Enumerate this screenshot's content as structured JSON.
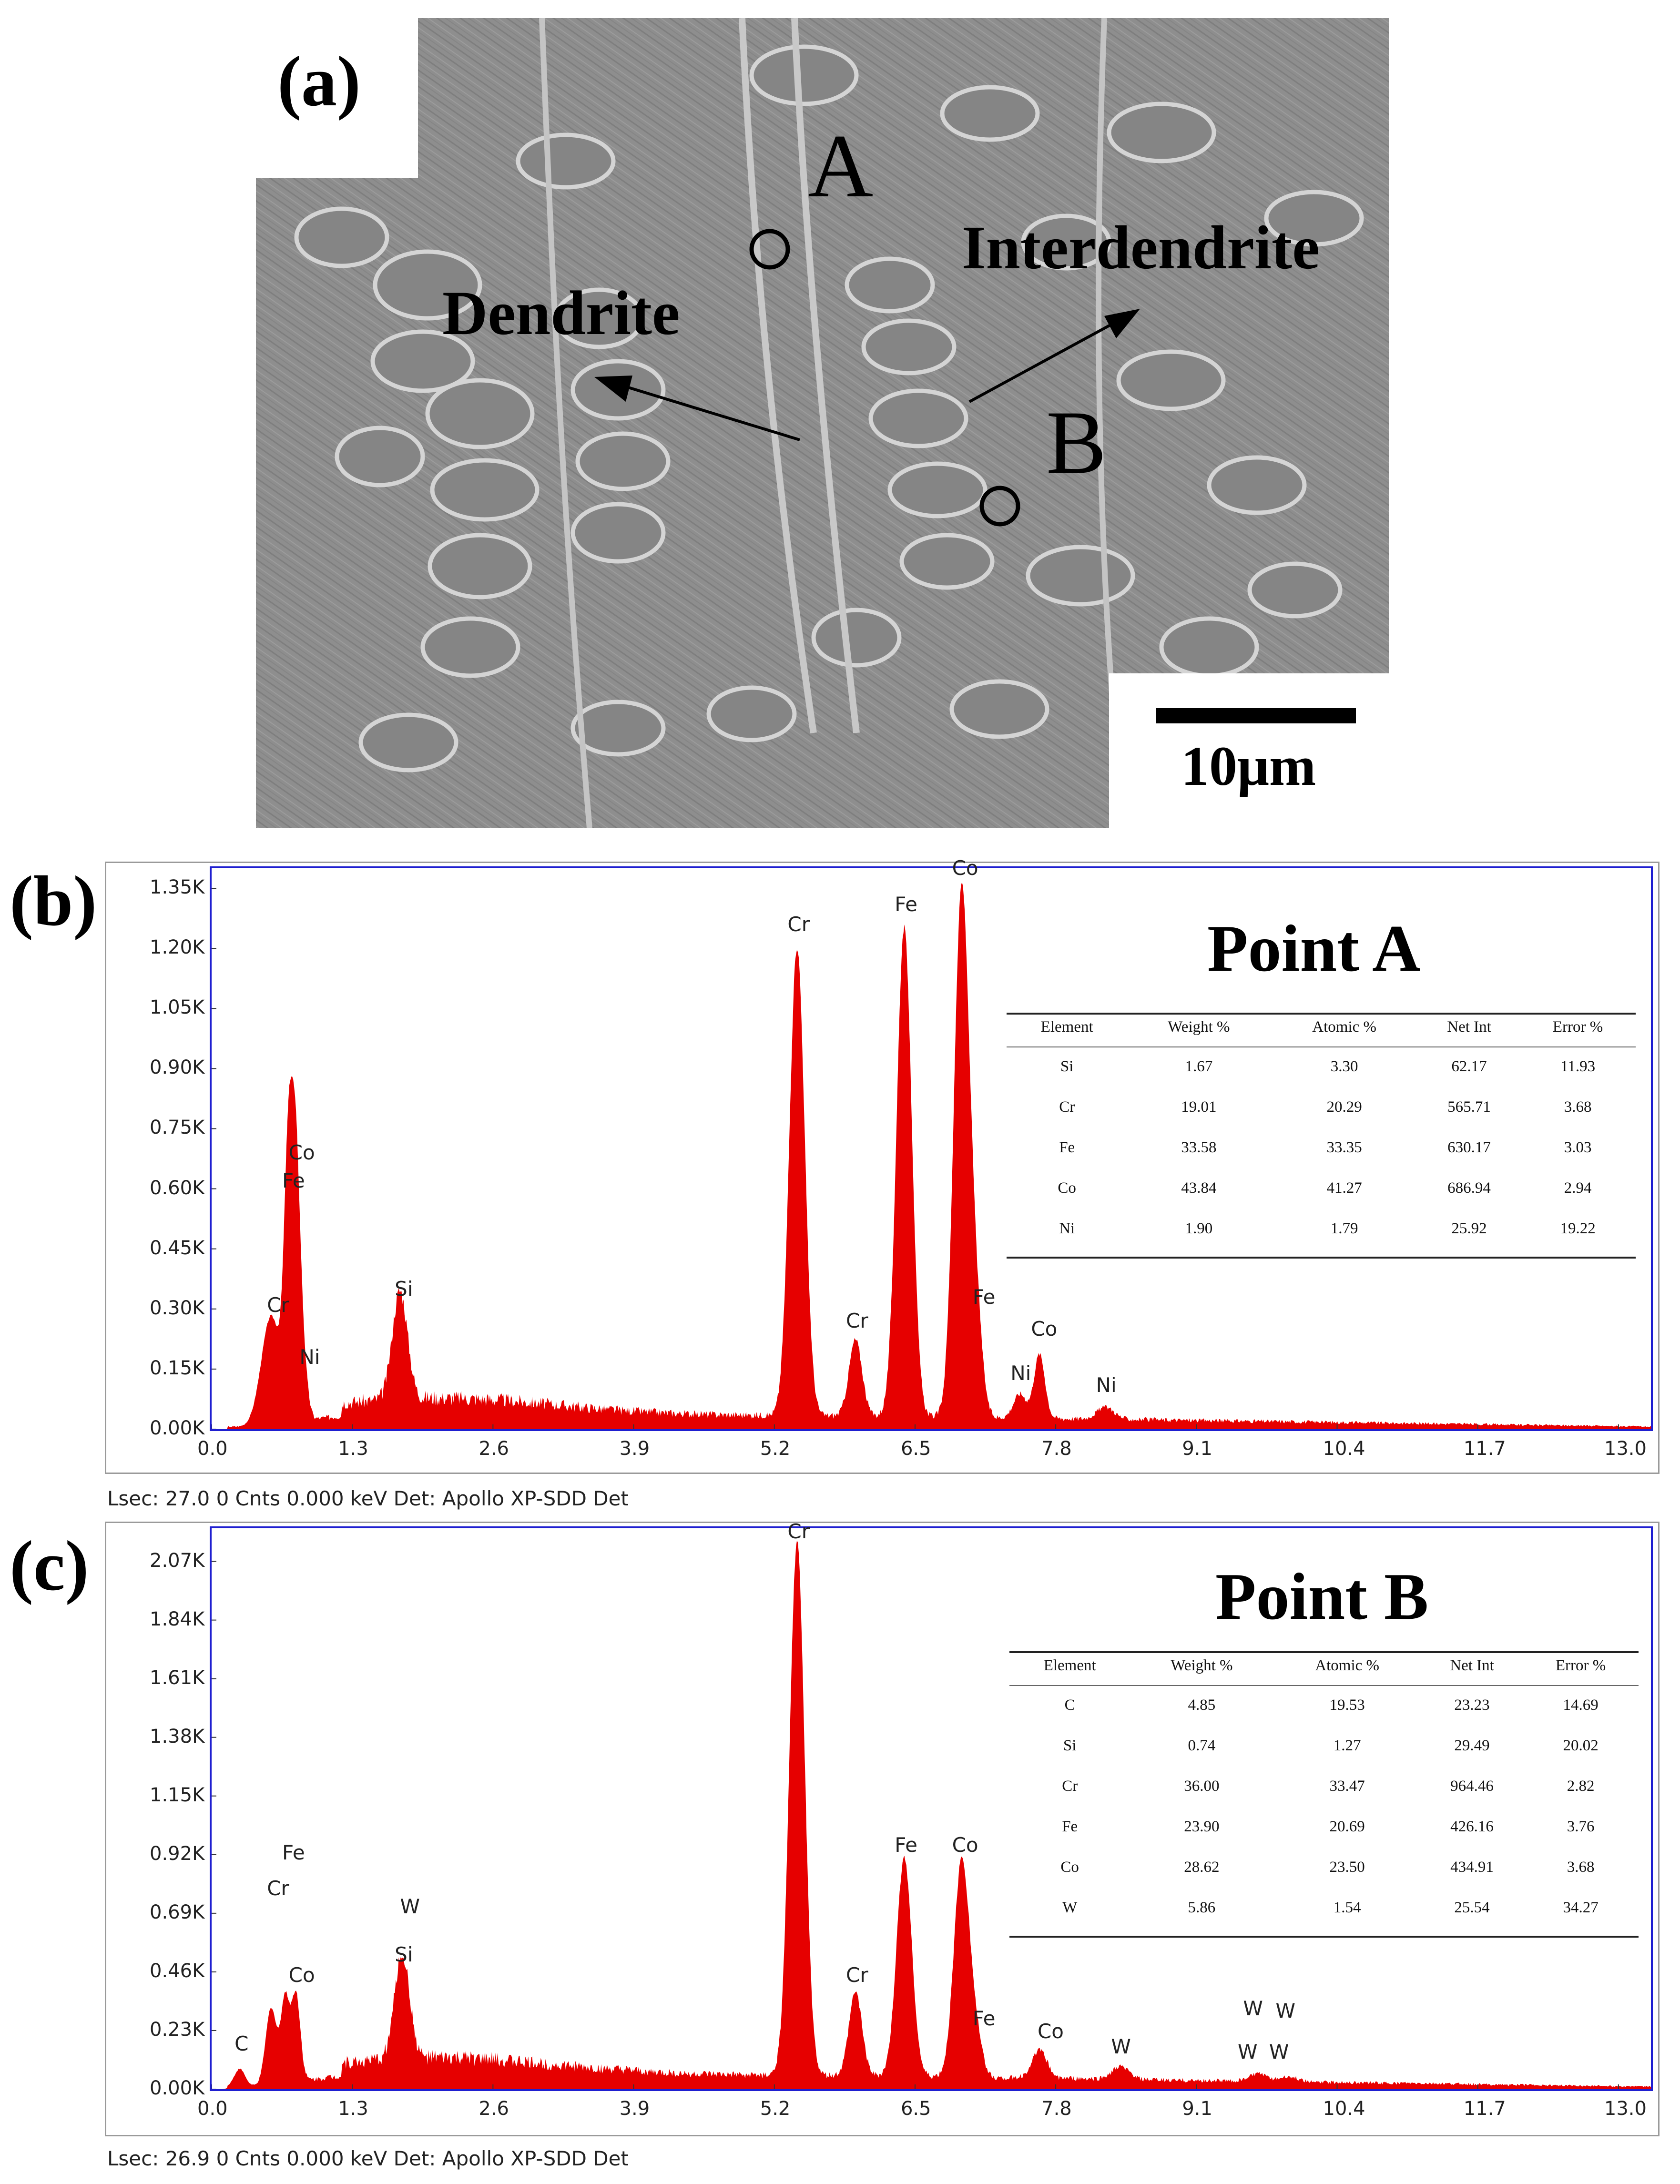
{
  "panel_a": {
    "label": "(a)",
    "point_a": "A",
    "point_b": "B",
    "dendrite": "Dendrite",
    "interdendrite": "Interdendrite",
    "scale_bar": "10μm"
  },
  "chart_data": [
    {
      "type": "area",
      "panel_label": "(b)",
      "title": "Point A",
      "xlim": [
        0.0,
        13.3
      ],
      "x_ticks": [
        "0.0",
        "1.3",
        "2.6",
        "3.9",
        "5.2",
        "6.5",
        "7.8",
        "9.1",
        "10.4",
        "11.7",
        "13.0"
      ],
      "ylim": [
        0,
        1.4
      ],
      "y_ticks": [
        "0.00K",
        "0.15K",
        "0.30K",
        "0.45K",
        "0.60K",
        "0.75K",
        "0.90K",
        "1.05K",
        "1.20K",
        "1.35K"
      ],
      "series": [
        {
          "color": "#e60000",
          "peaks": [
            {
              "x": 0.55,
              "y": 0.27,
              "w": 0.09
            },
            {
              "x": 0.71,
              "y": 0.62,
              "w": 0.04
            },
            {
              "x": 0.78,
              "y": 0.6,
              "w": 0.04
            },
            {
              "x": 0.85,
              "y": 0.12,
              "w": 0.04
            },
            {
              "x": 1.74,
              "y": 0.27,
              "w": 0.07
            },
            {
              "x": 5.41,
              "y": 1.17,
              "w": 0.07
            },
            {
              "x": 5.95,
              "y": 0.19,
              "w": 0.06
            },
            {
              "x": 6.4,
              "y": 1.22,
              "w": 0.07
            },
            {
              "x": 6.93,
              "y": 1.31,
              "w": 0.07
            },
            {
              "x": 7.06,
              "y": 0.24,
              "w": 0.06
            },
            {
              "x": 7.47,
              "y": 0.06,
              "w": 0.06
            },
            {
              "x": 7.65,
              "y": 0.16,
              "w": 0.05
            },
            {
              "x": 8.26,
              "y": 0.03,
              "w": 0.08
            }
          ]
        }
      ],
      "peak_labels": [
        {
          "text": "Co",
          "x": 0.8,
          "y": 0.66
        },
        {
          "text": "Fe",
          "x": 0.74,
          "y": 0.59
        },
        {
          "text": "Cr",
          "x": 0.6,
          "y": 0.28
        },
        {
          "text": "Ni",
          "x": 0.9,
          "y": 0.15
        },
        {
          "text": "Si",
          "x": 1.78,
          "y": 0.32
        },
        {
          "text": "Cr",
          "x": 5.41,
          "y": 1.23
        },
        {
          "text": "Cr",
          "x": 5.95,
          "y": 0.24
        },
        {
          "text": "Fe",
          "x": 6.4,
          "y": 1.28
        },
        {
          "text": "Co",
          "x": 6.93,
          "y": 1.37
        },
        {
          "text": "Fe",
          "x": 7.12,
          "y": 0.3
        },
        {
          "text": "Co",
          "x": 7.66,
          "y": 0.22
        },
        {
          "text": "Ni",
          "x": 7.47,
          "y": 0.11
        },
        {
          "text": "Ni",
          "x": 8.26,
          "y": 0.08
        }
      ],
      "table": {
        "headers": [
          "Element",
          "Weight %",
          "Atomic %",
          "Net Int",
          "Error %"
        ],
        "rows": [
          [
            "Si",
            "1.67",
            "3.30",
            "62.17",
            "11.93"
          ],
          [
            "Cr",
            "19.01",
            "20.29",
            "565.71",
            "3.68"
          ],
          [
            "Fe",
            "33.58",
            "33.35",
            "630.17",
            "3.03"
          ],
          [
            "Co",
            "43.84",
            "41.27",
            "686.94",
            "2.94"
          ],
          [
            "Ni",
            "1.90",
            "1.79",
            "25.92",
            "19.22"
          ]
        ]
      },
      "footer": "Lsec: 27.0 0 Cnts  0.000 keV Det: Apollo XP-SDD Det"
    },
    {
      "type": "area",
      "panel_label": "(c)",
      "title": "Point B",
      "xlim": [
        0.0,
        13.3
      ],
      "x_ticks": [
        "0.0",
        "1.3",
        "2.6",
        "3.9",
        "5.2",
        "6.5",
        "7.8",
        "9.1",
        "10.4",
        "11.7",
        "13.0"
      ],
      "ylim": [
        0,
        2.2
      ],
      "y_ticks": [
        "0.00K",
        "0.23K",
        "0.46K",
        "0.69K",
        "0.92K",
        "1.15K",
        "1.38K",
        "1.61K",
        "1.84K",
        "2.07K"
      ],
      "series": [
        {
          "color": "#e60000",
          "peaks": [
            {
              "x": 0.26,
              "y": 0.07,
              "w": 0.05
            },
            {
              "x": 0.55,
              "y": 0.3,
              "w": 0.05
            },
            {
              "x": 0.68,
              "y": 0.33,
              "w": 0.04
            },
            {
              "x": 0.78,
              "y": 0.34,
              "w": 0.04
            },
            {
              "x": 1.76,
              "y": 0.41,
              "w": 0.07
            },
            {
              "x": 5.41,
              "y": 2.09,
              "w": 0.07
            },
            {
              "x": 5.95,
              "y": 0.33,
              "w": 0.06
            },
            {
              "x": 6.4,
              "y": 0.86,
              "w": 0.07
            },
            {
              "x": 6.93,
              "y": 0.85,
              "w": 0.07
            },
            {
              "x": 7.06,
              "y": 0.15,
              "w": 0.06
            },
            {
              "x": 7.65,
              "y": 0.11,
              "w": 0.07
            },
            {
              "x": 8.4,
              "y": 0.05,
              "w": 0.08
            },
            {
              "x": 9.67,
              "y": 0.03,
              "w": 0.08
            },
            {
              "x": 9.96,
              "y": 0.02,
              "w": 0.08
            }
          ]
        }
      ],
      "peak_labels": [
        {
          "text": "C",
          "x": 0.3,
          "y": 0.13
        },
        {
          "text": "Fe",
          "x": 0.74,
          "y": 0.88
        },
        {
          "text": "Cr",
          "x": 0.6,
          "y": 0.74
        },
        {
          "text": "Co",
          "x": 0.8,
          "y": 0.4
        },
        {
          "text": "W",
          "x": 1.83,
          "y": 0.67
        },
        {
          "text": "Si",
          "x": 1.78,
          "y": 0.48
        },
        {
          "text": "Cr",
          "x": 5.41,
          "y": 2.14
        },
        {
          "text": "Cr",
          "x": 5.95,
          "y": 0.4
        },
        {
          "text": "Fe",
          "x": 6.4,
          "y": 0.91
        },
        {
          "text": "Co",
          "x": 6.93,
          "y": 0.91
        },
        {
          "text": "Fe",
          "x": 7.12,
          "y": 0.23
        },
        {
          "text": "Co",
          "x": 7.72,
          "y": 0.18
        },
        {
          "text": "W",
          "x": 8.4,
          "y": 0.12
        },
        {
          "text": "W",
          "x": 9.62,
          "y": 0.27
        },
        {
          "text": "W",
          "x": 9.92,
          "y": 0.26
        },
        {
          "text": "W",
          "x": 9.57,
          "y": 0.1
        },
        {
          "text": "W",
          "x": 9.86,
          "y": 0.1
        }
      ],
      "table": {
        "headers": [
          "Element",
          "Weight %",
          "Atomic %",
          "Net Int",
          "Error %"
        ],
        "rows": [
          [
            "C",
            "4.85",
            "19.53",
            "23.23",
            "14.69"
          ],
          [
            "Si",
            "0.74",
            "1.27",
            "29.49",
            "20.02"
          ],
          [
            "Cr",
            "36.00",
            "33.47",
            "964.46",
            "2.82"
          ],
          [
            "Fe",
            "23.90",
            "20.69",
            "426.16",
            "3.76"
          ],
          [
            "Co",
            "28.62",
            "23.50",
            "434.91",
            "3.68"
          ],
          [
            "W",
            "5.86",
            "1.54",
            "25.54",
            "34.27"
          ]
        ]
      },
      "footer": "Lsec: 26.9 0 Cnts  0.000 keV Det: Apollo XP-SDD Det"
    }
  ]
}
